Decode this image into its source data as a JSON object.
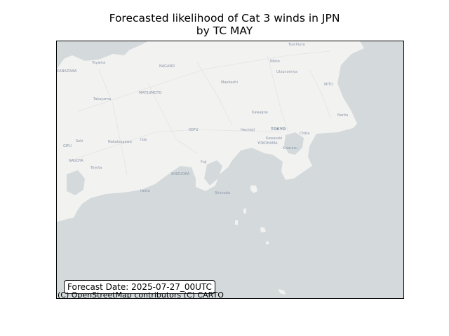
{
  "title": {
    "line1": "Forecasted likelihood of Cat 3 winds in JPN",
    "line2": "by TC MAY"
  },
  "forecast_date": "Forecast Date: 2025-07-27_00UTC",
  "attribution": "(C) OpenStreetMap contributors (C) CARTO",
  "colors": {
    "land": "#f2f2f1",
    "sea": "#d4dadc",
    "roads": "#e2e2e2",
    "labels": "#8a96a8"
  },
  "map_labels": {
    "toyama": "Toyama",
    "nagano": "NAGANO",
    "matsumoto": "MATSUMOTO",
    "takayama": "Takayama",
    "kanazawa": "KANAZAWA",
    "nikko": "Nikko",
    "utsunomiya": "Utsunomiya",
    "mito": "MITO",
    "maebashi": "Maebashi",
    "kawagoe": "Kawagoe",
    "tokyo": "TOKYO",
    "kofu": "KOFU",
    "hachioji": "Hachioji",
    "kawasaki": "Kawasaki",
    "yokohama": "YOKOHAMA",
    "chiba": "Chiba",
    "kisarazu": "Kisarazu",
    "gifu": "GIFU",
    "seki": "Seki",
    "nakatsugawa": "Nakatsugawa",
    "iida": "Iida",
    "nagoya": "NAGOYA",
    "toyota": "Toyota",
    "shizuoka": "SHIZUOKA",
    "fuji": "Fuji",
    "iwata": "Iwata",
    "shimoda": "Shimoda",
    "narita": "Narita",
    "tsuchiura": "Tsuchiura"
  }
}
